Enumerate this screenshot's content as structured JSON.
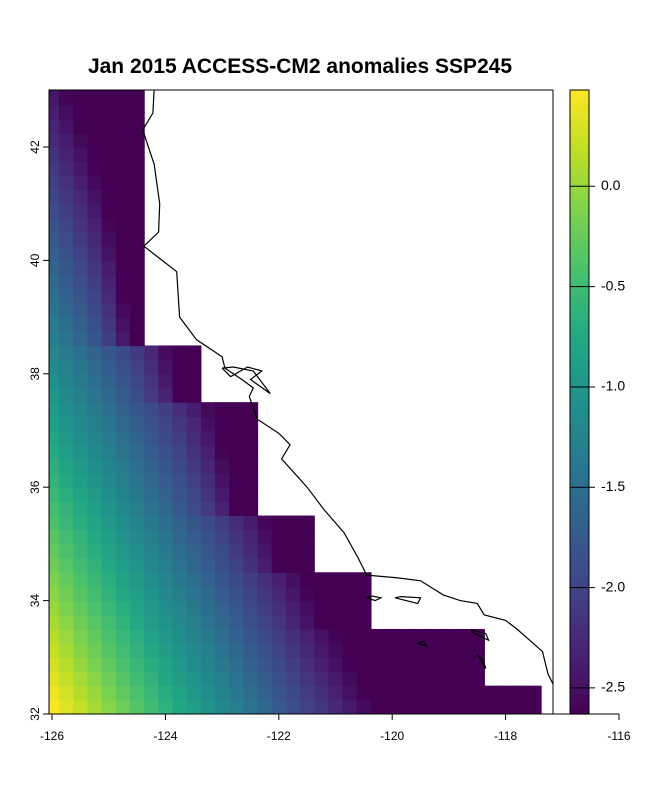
{
  "chart_data": {
    "type": "heatmap",
    "title": "Jan 2015 ACCESS-CM2 anomalies SSP245",
    "x_ticks": [
      "-126",
      "-124",
      "-122",
      "-120",
      "-118",
      "-116"
    ],
    "y_ticks": [
      "32",
      "34",
      "36",
      "38",
      "40",
      "42"
    ],
    "xlim": [
      -126.1,
      -114.9
    ],
    "ylim": [
      32.0,
      43.0
    ],
    "colorbar": {
      "palette": "viridis",
      "range": [
        -2.63,
        0.48
      ],
      "tick_values": [
        0.0,
        -0.5,
        -1.0,
        -1.5,
        -2.0,
        -2.5
      ],
      "tick_labels": [
        "0.0",
        "-0.5",
        "-1.0",
        "-1.5",
        "-2.0",
        "-2.5"
      ]
    },
    "grid": {
      "cell_deg": 0.25,
      "lon_start": -126.125,
      "lat_start": 32.0,
      "ocean_mask_eastern_edge": [
        {
          "lat_from": 32.0,
          "lat_to": 32.5,
          "lon_edge": -117.375
        },
        {
          "lat_from": 32.5,
          "lat_to": 33.5,
          "lon_edge": -118.375
        },
        {
          "lat_from": 33.5,
          "lat_to": 34.5,
          "lon_edge": -120.375
        },
        {
          "lat_from": 34.5,
          "lat_to": 35.5,
          "lon_edge": -121.375
        },
        {
          "lat_from": 35.5,
          "lat_to": 37.5,
          "lon_edge": -122.375
        },
        {
          "lat_from": 37.5,
          "lat_to": 38.5,
          "lon_edge": -123.375
        },
        {
          "lat_from": 38.5,
          "lat_to": 43.0,
          "lon_edge": -124.375
        }
      ]
    }
  }
}
